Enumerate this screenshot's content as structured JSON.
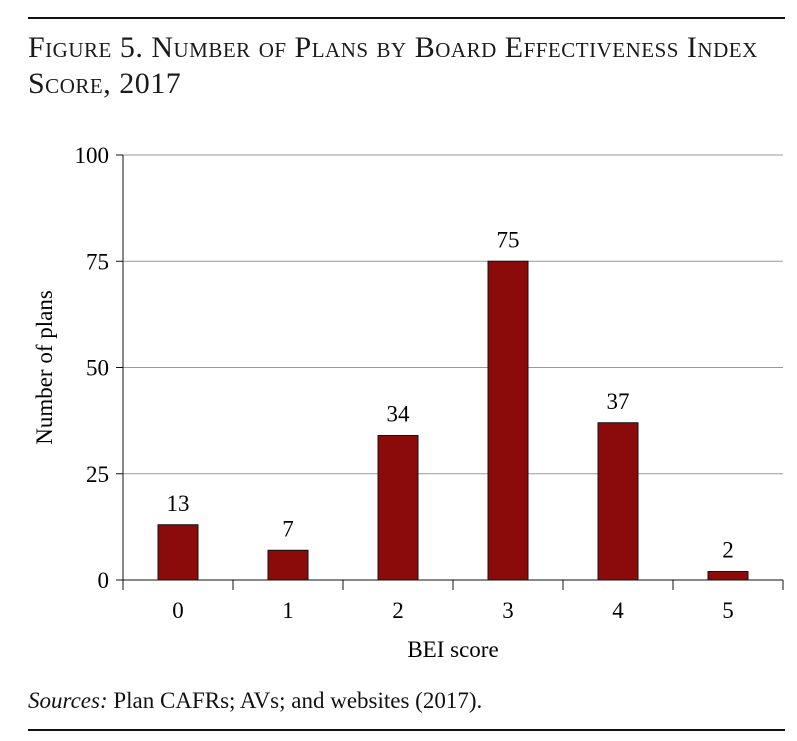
{
  "figure": {
    "title": "Figure 5. Number of Plans by Board Effectiveness Index Score, 2017",
    "source_label": "Sources:",
    "source_text": "Plan CAFRs; AVs; and websites (2017)."
  },
  "chart_data": {
    "type": "bar",
    "categories": [
      "0",
      "1",
      "2",
      "3",
      "4",
      "5"
    ],
    "values": [
      13,
      7,
      34,
      75,
      37,
      2
    ],
    "data_labels": [
      "13",
      "7",
      "34",
      "75",
      "37",
      "2"
    ],
    "xlabel": "BEI score",
    "ylabel": "Number of plans",
    "ylim": [
      0,
      100
    ],
    "yticks": [
      "0",
      "25",
      "50",
      "75",
      "100"
    ],
    "grid": true,
    "bar_color": "#8b0a0a",
    "grid_color": "#9a9a9a"
  }
}
